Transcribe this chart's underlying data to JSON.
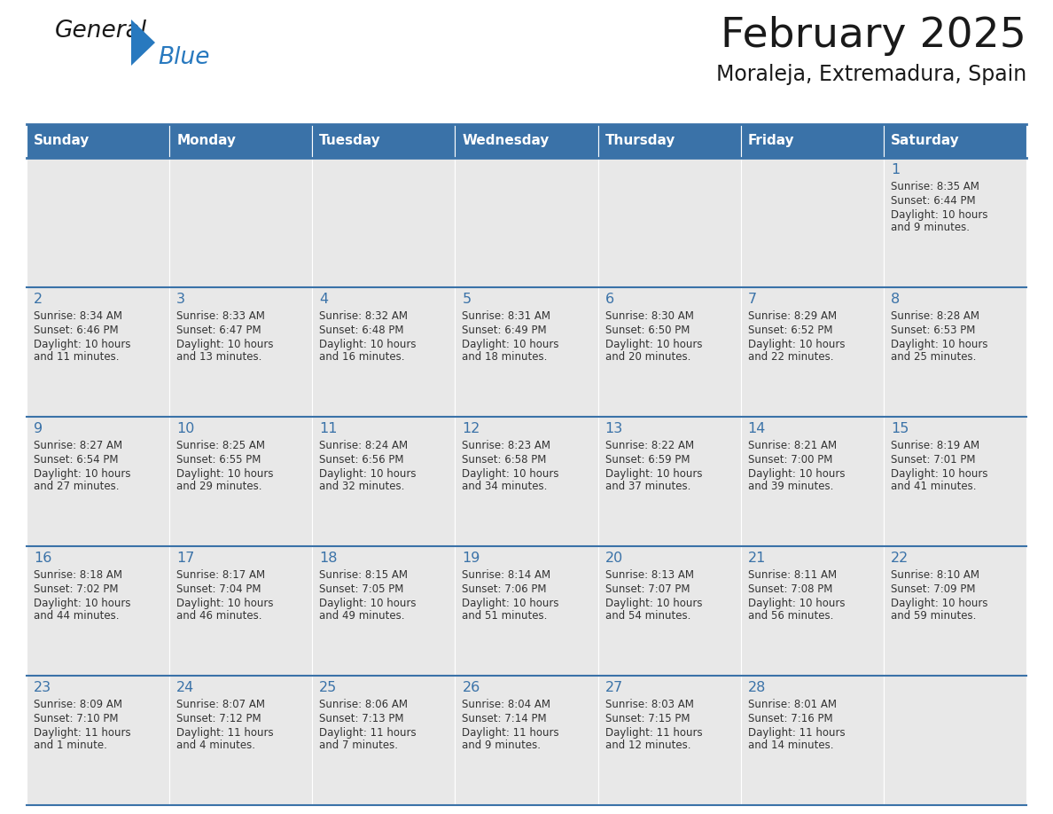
{
  "title": "February 2025",
  "subtitle": "Moraleja, Extremadura, Spain",
  "days_of_week": [
    "Sunday",
    "Monday",
    "Tuesday",
    "Wednesday",
    "Thursday",
    "Friday",
    "Saturday"
  ],
  "header_bg": "#3a72a8",
  "header_text": "#ffffff",
  "cell_bg": "#e8e8e8",
  "cell_bg_white": "#ffffff",
  "border_color": "#3a72a8",
  "text_color": "#333333",
  "day_num_color": "#3a72a8",
  "logo_general_color": "#1a1a1a",
  "logo_blue_color": "#2879bf",
  "cells": [
    {
      "col": 6,
      "row": 0,
      "date": "1",
      "sunrise": "8:35 AM",
      "sunset": "6:44 PM",
      "daylight": "10 hours",
      "daylight2": "and 9 minutes."
    },
    {
      "col": 0,
      "row": 1,
      "date": "2",
      "sunrise": "8:34 AM",
      "sunset": "6:46 PM",
      "daylight": "10 hours",
      "daylight2": "and 11 minutes."
    },
    {
      "col": 1,
      "row": 1,
      "date": "3",
      "sunrise": "8:33 AM",
      "sunset": "6:47 PM",
      "daylight": "10 hours",
      "daylight2": "and 13 minutes."
    },
    {
      "col": 2,
      "row": 1,
      "date": "4",
      "sunrise": "8:32 AM",
      "sunset": "6:48 PM",
      "daylight": "10 hours",
      "daylight2": "and 16 minutes."
    },
    {
      "col": 3,
      "row": 1,
      "date": "5",
      "sunrise": "8:31 AM",
      "sunset": "6:49 PM",
      "daylight": "10 hours",
      "daylight2": "and 18 minutes."
    },
    {
      "col": 4,
      "row": 1,
      "date": "6",
      "sunrise": "8:30 AM",
      "sunset": "6:50 PM",
      "daylight": "10 hours",
      "daylight2": "and 20 minutes."
    },
    {
      "col": 5,
      "row": 1,
      "date": "7",
      "sunrise": "8:29 AM",
      "sunset": "6:52 PM",
      "daylight": "10 hours",
      "daylight2": "and 22 minutes."
    },
    {
      "col": 6,
      "row": 1,
      "date": "8",
      "sunrise": "8:28 AM",
      "sunset": "6:53 PM",
      "daylight": "10 hours",
      "daylight2": "and 25 minutes."
    },
    {
      "col": 0,
      "row": 2,
      "date": "9",
      "sunrise": "8:27 AM",
      "sunset": "6:54 PM",
      "daylight": "10 hours",
      "daylight2": "and 27 minutes."
    },
    {
      "col": 1,
      "row": 2,
      "date": "10",
      "sunrise": "8:25 AM",
      "sunset": "6:55 PM",
      "daylight": "10 hours",
      "daylight2": "and 29 minutes."
    },
    {
      "col": 2,
      "row": 2,
      "date": "11",
      "sunrise": "8:24 AM",
      "sunset": "6:56 PM",
      "daylight": "10 hours",
      "daylight2": "and 32 minutes."
    },
    {
      "col": 3,
      "row": 2,
      "date": "12",
      "sunrise": "8:23 AM",
      "sunset": "6:58 PM",
      "daylight": "10 hours",
      "daylight2": "and 34 minutes."
    },
    {
      "col": 4,
      "row": 2,
      "date": "13",
      "sunrise": "8:22 AM",
      "sunset": "6:59 PM",
      "daylight": "10 hours",
      "daylight2": "and 37 minutes."
    },
    {
      "col": 5,
      "row": 2,
      "date": "14",
      "sunrise": "8:21 AM",
      "sunset": "7:00 PM",
      "daylight": "10 hours",
      "daylight2": "and 39 minutes."
    },
    {
      "col": 6,
      "row": 2,
      "date": "15",
      "sunrise": "8:19 AM",
      "sunset": "7:01 PM",
      "daylight": "10 hours",
      "daylight2": "and 41 minutes."
    },
    {
      "col": 0,
      "row": 3,
      "date": "16",
      "sunrise": "8:18 AM",
      "sunset": "7:02 PM",
      "daylight": "10 hours",
      "daylight2": "and 44 minutes."
    },
    {
      "col": 1,
      "row": 3,
      "date": "17",
      "sunrise": "8:17 AM",
      "sunset": "7:04 PM",
      "daylight": "10 hours",
      "daylight2": "and 46 minutes."
    },
    {
      "col": 2,
      "row": 3,
      "date": "18",
      "sunrise": "8:15 AM",
      "sunset": "7:05 PM",
      "daylight": "10 hours",
      "daylight2": "and 49 minutes."
    },
    {
      "col": 3,
      "row": 3,
      "date": "19",
      "sunrise": "8:14 AM",
      "sunset": "7:06 PM",
      "daylight": "10 hours",
      "daylight2": "and 51 minutes."
    },
    {
      "col": 4,
      "row": 3,
      "date": "20",
      "sunrise": "8:13 AM",
      "sunset": "7:07 PM",
      "daylight": "10 hours",
      "daylight2": "and 54 minutes."
    },
    {
      "col": 5,
      "row": 3,
      "date": "21",
      "sunrise": "8:11 AM",
      "sunset": "7:08 PM",
      "daylight": "10 hours",
      "daylight2": "and 56 minutes."
    },
    {
      "col": 6,
      "row": 3,
      "date": "22",
      "sunrise": "8:10 AM",
      "sunset": "7:09 PM",
      "daylight": "10 hours",
      "daylight2": "and 59 minutes."
    },
    {
      "col": 0,
      "row": 4,
      "date": "23",
      "sunrise": "8:09 AM",
      "sunset": "7:10 PM",
      "daylight": "11 hours",
      "daylight2": "and 1 minute."
    },
    {
      "col": 1,
      "row": 4,
      "date": "24",
      "sunrise": "8:07 AM",
      "sunset": "7:12 PM",
      "daylight": "11 hours",
      "daylight2": "and 4 minutes."
    },
    {
      "col": 2,
      "row": 4,
      "date": "25",
      "sunrise": "8:06 AM",
      "sunset": "7:13 PM",
      "daylight": "11 hours",
      "daylight2": "and 7 minutes."
    },
    {
      "col": 3,
      "row": 4,
      "date": "26",
      "sunrise": "8:04 AM",
      "sunset": "7:14 PM",
      "daylight": "11 hours",
      "daylight2": "and 9 minutes."
    },
    {
      "col": 4,
      "row": 4,
      "date": "27",
      "sunrise": "8:03 AM",
      "sunset": "7:15 PM",
      "daylight": "11 hours",
      "daylight2": "and 12 minutes."
    },
    {
      "col": 5,
      "row": 4,
      "date": "28",
      "sunrise": "8:01 AM",
      "sunset": "7:16 PM",
      "daylight": "11 hours",
      "daylight2": "and 14 minutes."
    }
  ]
}
